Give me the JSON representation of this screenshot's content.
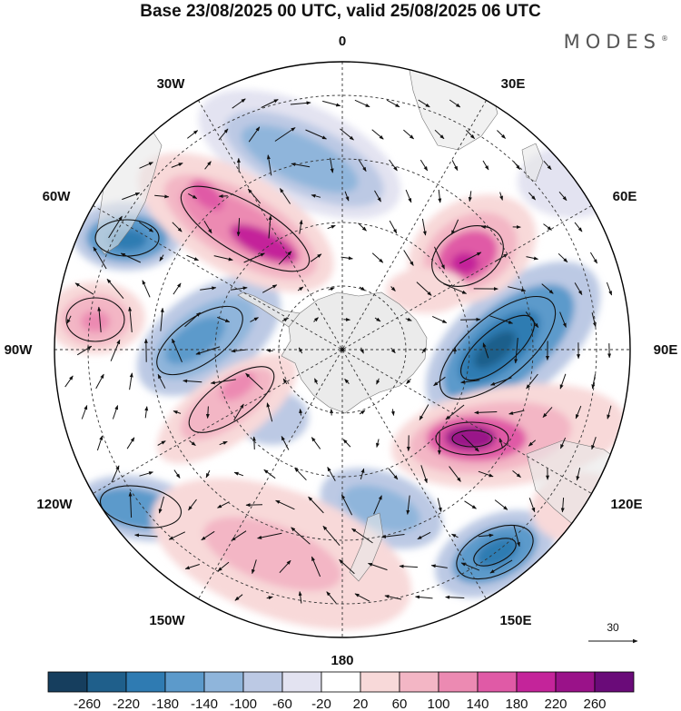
{
  "title": "Base 23/08/2025 00 UTC, valid 25/08/2025 06 UTC",
  "brand": "MODES",
  "brand_mark": "®",
  "meridian_labels": [
    "0",
    "30E",
    "60E",
    "90E",
    "120E",
    "150E",
    "180",
    "150W",
    "120W",
    "90W",
    "60W",
    "30W"
  ],
  "wind_reference": "30",
  "colorbar": {
    "ticks": [
      "-260",
      "-220",
      "-180",
      "-140",
      "-100",
      "-60",
      "-20",
      "20",
      "60",
      "100",
      "140",
      "180",
      "220",
      "260"
    ],
    "colors": [
      "#163e5e",
      "#1f5f8b",
      "#2f7bb2",
      "#5c9acb",
      "#8fb5db",
      "#bcc9e4",
      "#e3e3f1",
      "#ffffff",
      "#f8d9d9",
      "#f3b6c5",
      "#ec8ab2",
      "#e05aa6",
      "#c4249a",
      "#9a1289",
      "#6a0b79"
    ]
  },
  "colors": {
    "land": "#e8e8e8",
    "grid": "#333333",
    "outline": "#000000"
  }
}
